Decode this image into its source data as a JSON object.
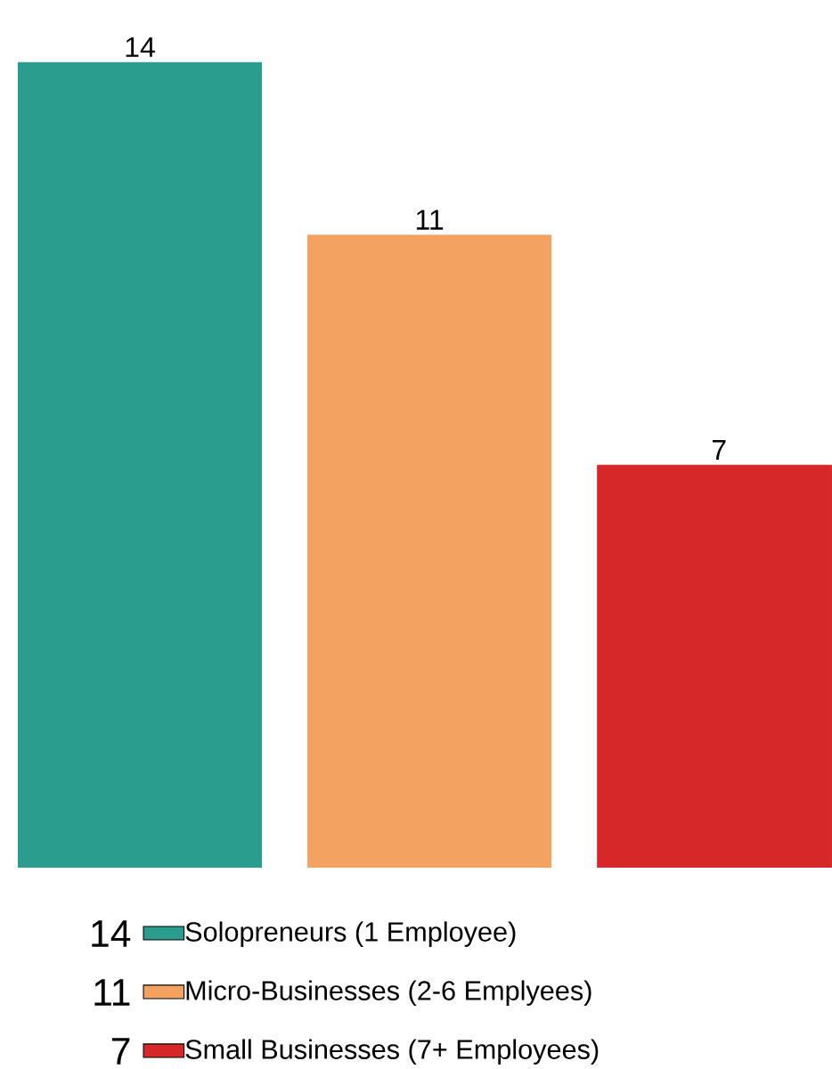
{
  "chart_data": {
    "type": "bar",
    "categories": [
      null,
      null,
      null
    ],
    "series": [
      {
        "name": "Solopreneurs    (1 Employee)",
        "color": "#2a9d8f",
        "values": [
          14,
          null,
          null
        ]
      },
      {
        "name": "Micro-Businesses (2-6 Emplyees)",
        "color": "#f4a261",
        "values": [
          null,
          11,
          null
        ]
      },
      {
        "name": "Small Businesses (7+ Employees)",
        "color": "#d62828",
        "values": [
          null,
          null,
          7
        ]
      }
    ],
    "stacked": true,
    "data_labels": true,
    "legend": "bottom",
    "annotations": [
      "14",
      "11",
      "7"
    ]
  }
}
